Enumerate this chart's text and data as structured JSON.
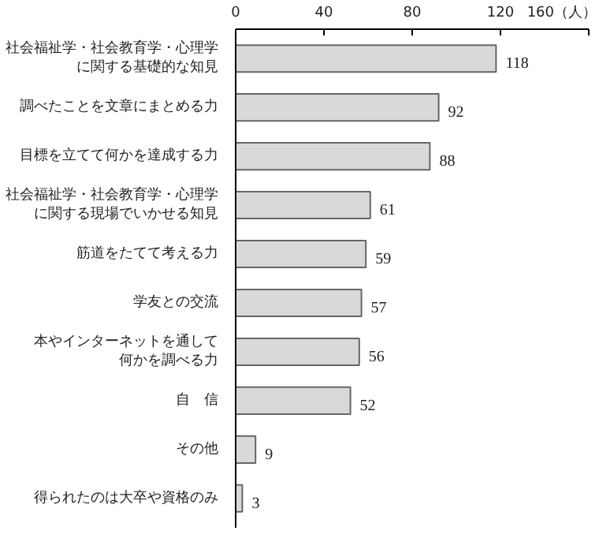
{
  "chart_data": {
    "type": "bar",
    "orientation": "horizontal",
    "categories": [
      "社会福祉学・社会教育学・心理学に関する基礎的な知見",
      "調べたことを文章にまとめる力",
      "目標を立てて何かを達成する力",
      "社会福祉学・社会教育学・心理学に関する現場でいかせる知見",
      "筋道をたてて考える力",
      "学友との交流",
      "本やインターネットを通して何かを調べる力",
      "自　信",
      "その他",
      "得られたのは大卒や資格のみ"
    ],
    "values": [
      118,
      92,
      88,
      61,
      59,
      57,
      56,
      52,
      9,
      3
    ],
    "color": "#d9d9d9",
    "xlim": [
      0,
      160
    ],
    "xticks": [
      0,
      40,
      80,
      120,
      {
        "value": 160,
        "label": "160（人）"
      }
    ],
    "data_labels": true,
    "grid": false
  }
}
